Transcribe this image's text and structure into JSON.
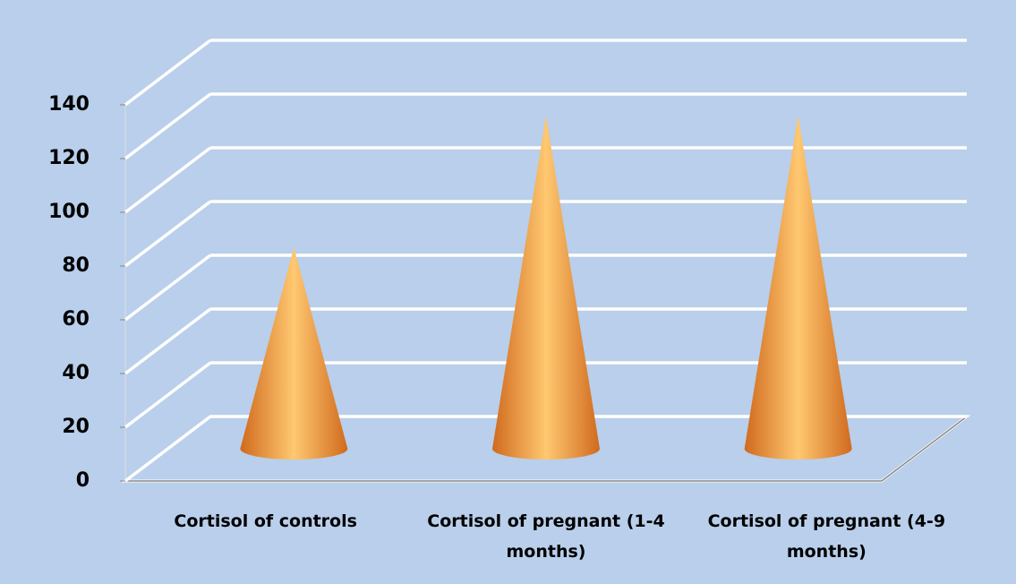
{
  "chart_data": {
    "type": "cone",
    "categories": [
      "Cortisol of controls",
      "Cortisol of pregnant (1-4 months)",
      "Cortisol of pregnant (4-9 months)"
    ],
    "values": [
      75,
      124,
      124
    ],
    "color": "#f0a050",
    "ylim": [
      0,
      140
    ],
    "yticks": [
      0,
      20,
      40,
      60,
      80,
      100,
      120,
      140
    ],
    "grid": true
  }
}
